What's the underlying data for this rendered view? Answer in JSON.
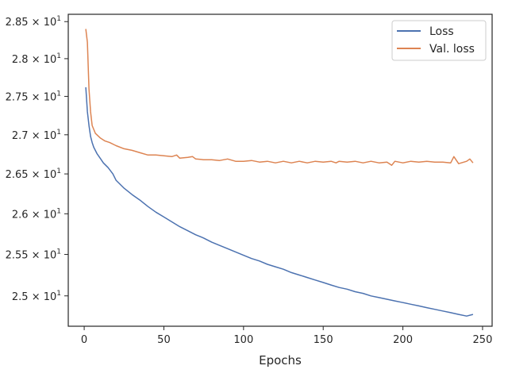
{
  "chart_data": {
    "type": "line",
    "title": "",
    "xlabel": "Epochs",
    "ylabel": "",
    "xlim": [
      -10,
      256
    ],
    "ylim": [
      24.64,
      28.6
    ],
    "yscale": "log",
    "grid": false,
    "legend_position": "top-right",
    "x_ticks": [
      0,
      50,
      100,
      150,
      200,
      250
    ],
    "x_tick_labels": [
      "0",
      "50",
      "100",
      "150",
      "200",
      "250"
    ],
    "y_ticks": [
      25.0,
      25.5,
      26.0,
      26.5,
      27.0,
      27.5,
      28.0,
      28.5
    ],
    "y_tick_labels": [
      {
        "mantissa": "2.5",
        "exp": "1"
      },
      {
        "mantissa": "2.55",
        "exp": "1"
      },
      {
        "mantissa": "2.6",
        "exp": "1"
      },
      {
        "mantissa": "2.65",
        "exp": "1"
      },
      {
        "mantissa": "2.7",
        "exp": "1"
      },
      {
        "mantissa": "2.75",
        "exp": "1"
      },
      {
        "mantissa": "2.8",
        "exp": "1"
      },
      {
        "mantissa": "2.85",
        "exp": "1"
      }
    ],
    "y_tick_times": "×",
    "y_tick_base": "10",
    "series": [
      {
        "name": "Loss",
        "color": "#4c72b0",
        "x": [
          1,
          2,
          3,
          4,
          5,
          6,
          8,
          10,
          12,
          15,
          18,
          20,
          25,
          30,
          35,
          40,
          45,
          50,
          55,
          60,
          65,
          70,
          75,
          80,
          85,
          90,
          95,
          100,
          105,
          110,
          115,
          120,
          125,
          130,
          135,
          140,
          145,
          150,
          155,
          160,
          165,
          170,
          175,
          180,
          185,
          190,
          195,
          200,
          205,
          210,
          215,
          220,
          225,
          230,
          235,
          240,
          244
        ],
        "y": [
          27.62,
          27.3,
          27.12,
          26.98,
          26.9,
          26.84,
          26.76,
          26.7,
          26.64,
          26.58,
          26.5,
          26.42,
          26.32,
          26.24,
          26.17,
          26.09,
          26.02,
          25.96,
          25.9,
          25.84,
          25.79,
          25.74,
          25.7,
          25.65,
          25.61,
          25.57,
          25.53,
          25.49,
          25.45,
          25.42,
          25.38,
          25.35,
          25.32,
          25.28,
          25.25,
          25.22,
          25.19,
          25.16,
          25.13,
          25.1,
          25.08,
          25.05,
          25.03,
          25.0,
          24.98,
          24.96,
          24.94,
          24.92,
          24.9,
          24.88,
          24.86,
          24.84,
          24.82,
          24.8,
          24.78,
          24.76,
          24.78
        ]
      },
      {
        "name": "Val. loss",
        "color": "#dd8452",
        "x": [
          1,
          2,
          3,
          4,
          5,
          7,
          10,
          13,
          16,
          20,
          25,
          30,
          35,
          40,
          45,
          50,
          55,
          58,
          60,
          65,
          68,
          70,
          75,
          80,
          85,
          90,
          95,
          100,
          105,
          110,
          115,
          120,
          125,
          130,
          135,
          140,
          145,
          150,
          155,
          158,
          160,
          165,
          170,
          175,
          180,
          185,
          190,
          193,
          195,
          200,
          205,
          210,
          215,
          220,
          225,
          230,
          232,
          235,
          240,
          242,
          244
        ],
        "y": [
          28.4,
          28.22,
          27.6,
          27.3,
          27.12,
          27.02,
          26.96,
          26.92,
          26.9,
          26.86,
          26.82,
          26.8,
          26.77,
          26.74,
          26.74,
          26.73,
          26.72,
          26.74,
          26.7,
          26.71,
          26.72,
          26.69,
          26.68,
          26.68,
          26.67,
          26.69,
          26.66,
          26.66,
          26.67,
          26.65,
          26.66,
          26.64,
          26.66,
          26.64,
          26.66,
          26.64,
          26.66,
          26.65,
          26.66,
          26.64,
          26.66,
          26.65,
          26.66,
          26.64,
          26.66,
          26.64,
          26.65,
          26.61,
          26.66,
          26.64,
          26.66,
          26.65,
          26.66,
          26.65,
          26.65,
          26.64,
          26.72,
          26.63,
          26.66,
          26.69,
          26.64
        ]
      }
    ]
  }
}
